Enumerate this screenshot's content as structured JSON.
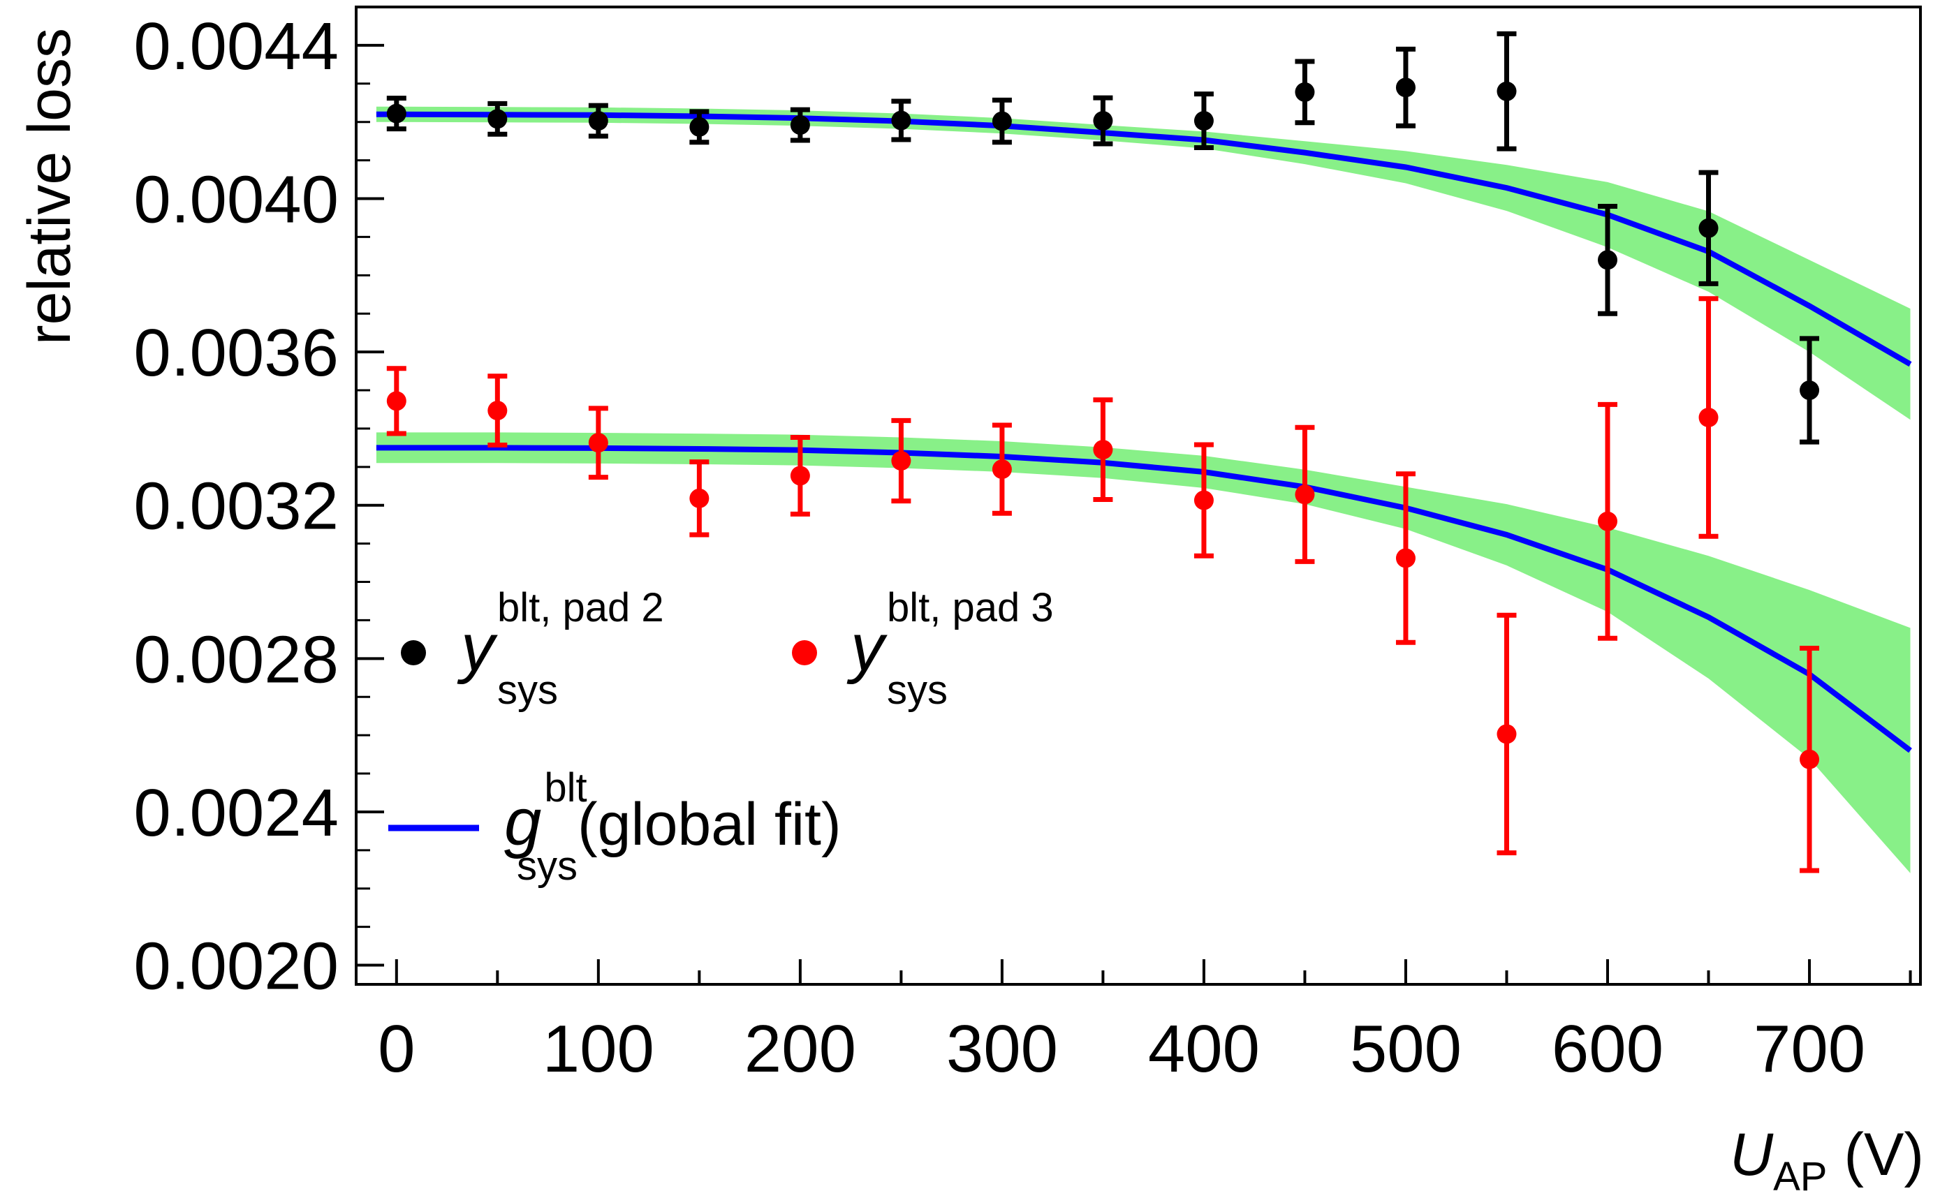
{
  "chart_data": {
    "type": "scatter",
    "xlabel": {
      "var": "U",
      "sub": "AP",
      "unit": " (V)"
    },
    "ylabel": "relative loss",
    "xlim": [
      -20,
      755
    ],
    "ylim": [
      0.00195,
      0.0045
    ],
    "xticks": [
      0,
      100,
      200,
      300,
      400,
      500,
      600,
      700
    ],
    "xtick_labels": [
      "0",
      "100",
      "200",
      "300",
      "400",
      "500",
      "600",
      "700"
    ],
    "xminor_ticks": [
      0,
      50,
      100,
      150,
      200,
      250,
      300,
      350,
      400,
      450,
      500,
      550,
      600,
      650,
      700,
      750
    ],
    "yticks": [
      0.002,
      0.0024,
      0.0028,
      0.0032,
      0.0036,
      0.004,
      0.0044
    ],
    "ytick_labels": [
      "0.0020",
      "0.0024",
      "0.0028",
      "0.0032",
      "0.0036",
      "0.0040",
      "0.0044"
    ],
    "series": [
      {
        "name": "pad 2",
        "color": "#000000",
        "x": [
          0,
          50,
          100,
          150,
          200,
          250,
          300,
          350,
          400,
          450,
          500,
          550,
          600,
          650,
          700
        ],
        "y": [
          0.004222,
          0.004208,
          0.004203,
          0.004187,
          0.004192,
          0.004204,
          0.004202,
          0.004203,
          0.004203,
          0.004278,
          0.00429,
          0.00428,
          0.00384,
          0.003923,
          0.0035
        ],
        "err": [
          4e-05,
          4e-05,
          4e-05,
          4e-05,
          4e-05,
          5e-05,
          5.5e-05,
          6e-05,
          7e-05,
          8e-05,
          0.0001,
          0.00015,
          0.00014,
          0.000145,
          0.000135
        ]
      },
      {
        "name": "pad 3",
        "color": "#ff0000",
        "x": [
          0,
          50,
          100,
          150,
          200,
          250,
          300,
          350,
          400,
          450,
          500,
          550,
          600,
          650,
          700
        ],
        "y": [
          0.003472,
          0.003447,
          0.003363,
          0.003218,
          0.003277,
          0.003316,
          0.003294,
          0.003345,
          0.003213,
          0.003228,
          0.003062,
          0.002603,
          0.003158,
          0.003429,
          0.002537
        ],
        "err": [
          8.5e-05,
          9e-05,
          9e-05,
          9.5e-05,
          0.0001,
          0.000105,
          0.000115,
          0.00013,
          0.000145,
          0.000175,
          0.00022,
          0.00031,
          0.000305,
          0.00031,
          0.00029
        ]
      }
    ],
    "fit_curves": [
      {
        "name": "global fit pad 2",
        "color": "#0000ff",
        "band_color": "#88f088",
        "x": [
          -10,
          0,
          50,
          100,
          150,
          200,
          250,
          300,
          350,
          400,
          450,
          500,
          550,
          600,
          650,
          700,
          750
        ],
        "y": [
          0.00422,
          0.00422,
          0.004219,
          0.004218,
          0.004215,
          0.00421,
          0.004202,
          0.00419,
          0.004172,
          0.004153,
          0.00412,
          0.004082,
          0.004028,
          0.003958,
          0.003862,
          0.00372,
          0.003568
        ],
        "band_half": [
          2e-05,
          2e-05,
          2e-05,
          2e-05,
          2e-05,
          2e-05,
          2e-05,
          2e-05,
          2e-05,
          2.2e-05,
          3e-05,
          4.2e-05,
          6e-05,
          8.5e-05,
          0.000105,
          0.00012,
          0.000145
        ]
      },
      {
        "name": "global fit pad 3",
        "color": "#0000ff",
        "band_color": "#88f088",
        "x": [
          -10,
          0,
          50,
          100,
          150,
          200,
          250,
          300,
          350,
          400,
          450,
          500,
          550,
          600,
          650,
          700,
          750
        ],
        "y": [
          0.00335,
          0.00335,
          0.00335,
          0.003349,
          0.003347,
          0.003344,
          0.003337,
          0.003327,
          0.003311,
          0.003287,
          0.003248,
          0.003193,
          0.003123,
          0.003032,
          0.002908,
          0.002759,
          0.00256
        ],
        "band_half": [
          4e-05,
          4e-05,
          4e-05,
          4e-05,
          4e-05,
          4e-05,
          4e-05,
          4e-05,
          4e-05,
          4.2e-05,
          4.5e-05,
          5.5e-05,
          8e-05,
          0.00011,
          0.00016,
          0.00022,
          0.00032
        ]
      }
    ],
    "legend": [
      {
        "marker": "point",
        "color": "#000000",
        "symbol": "y",
        "sup": "blt, pad 2",
        "sub": "sys",
        "text": ""
      },
      {
        "marker": "point",
        "color": "#ff0000",
        "symbol": "y",
        "sup": "blt, pad 3",
        "sub": "sys",
        "text": ""
      },
      {
        "marker": "line",
        "color": "#0000ff",
        "symbol": "g",
        "sup": "blt",
        "sub": "sys",
        "text": "(global fit)"
      }
    ]
  }
}
